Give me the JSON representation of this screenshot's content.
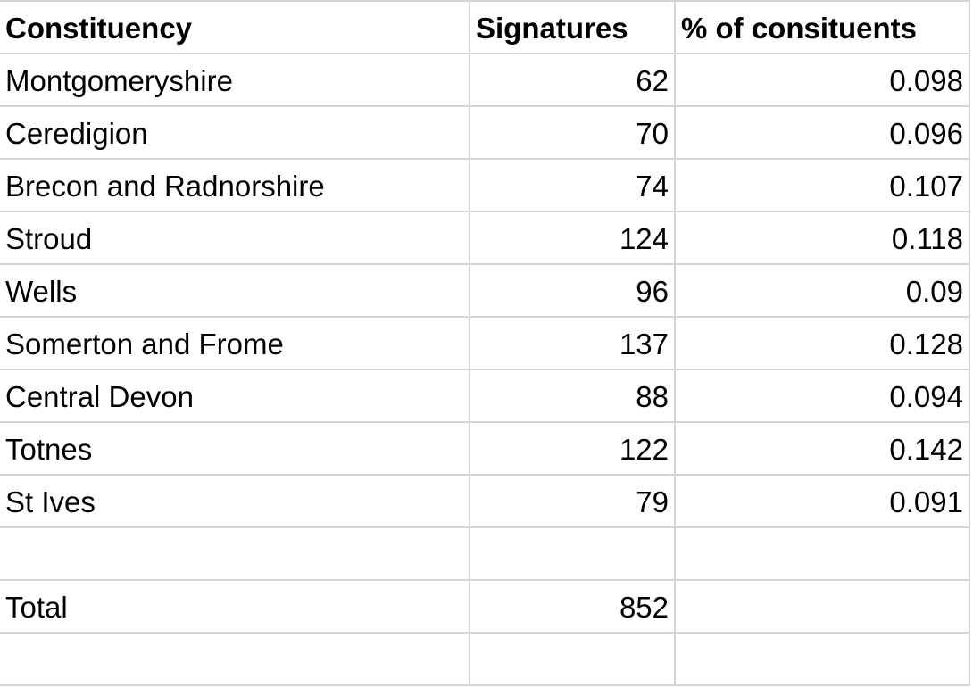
{
  "table": {
    "header": [
      "Constituency",
      "Signatures",
      "% of consituents"
    ],
    "rows": [
      [
        "Montgomeryshire",
        62,
        0.098
      ],
      [
        "Ceredigion",
        70,
        0.096
      ],
      [
        "Brecon and Radnorshire",
        74,
        0.107
      ],
      [
        "Stroud",
        124,
        0.118
      ],
      [
        "Wells",
        96,
        0.09
      ],
      [
        "Somerton and Frome",
        137,
        0.128
      ],
      [
        "Central Devon",
        88,
        0.094
      ],
      [
        "Totnes",
        122,
        0.142
      ],
      [
        "St Ives",
        79,
        0.091
      ]
    ],
    "total": [
      "Total",
      852
    ]
  }
}
